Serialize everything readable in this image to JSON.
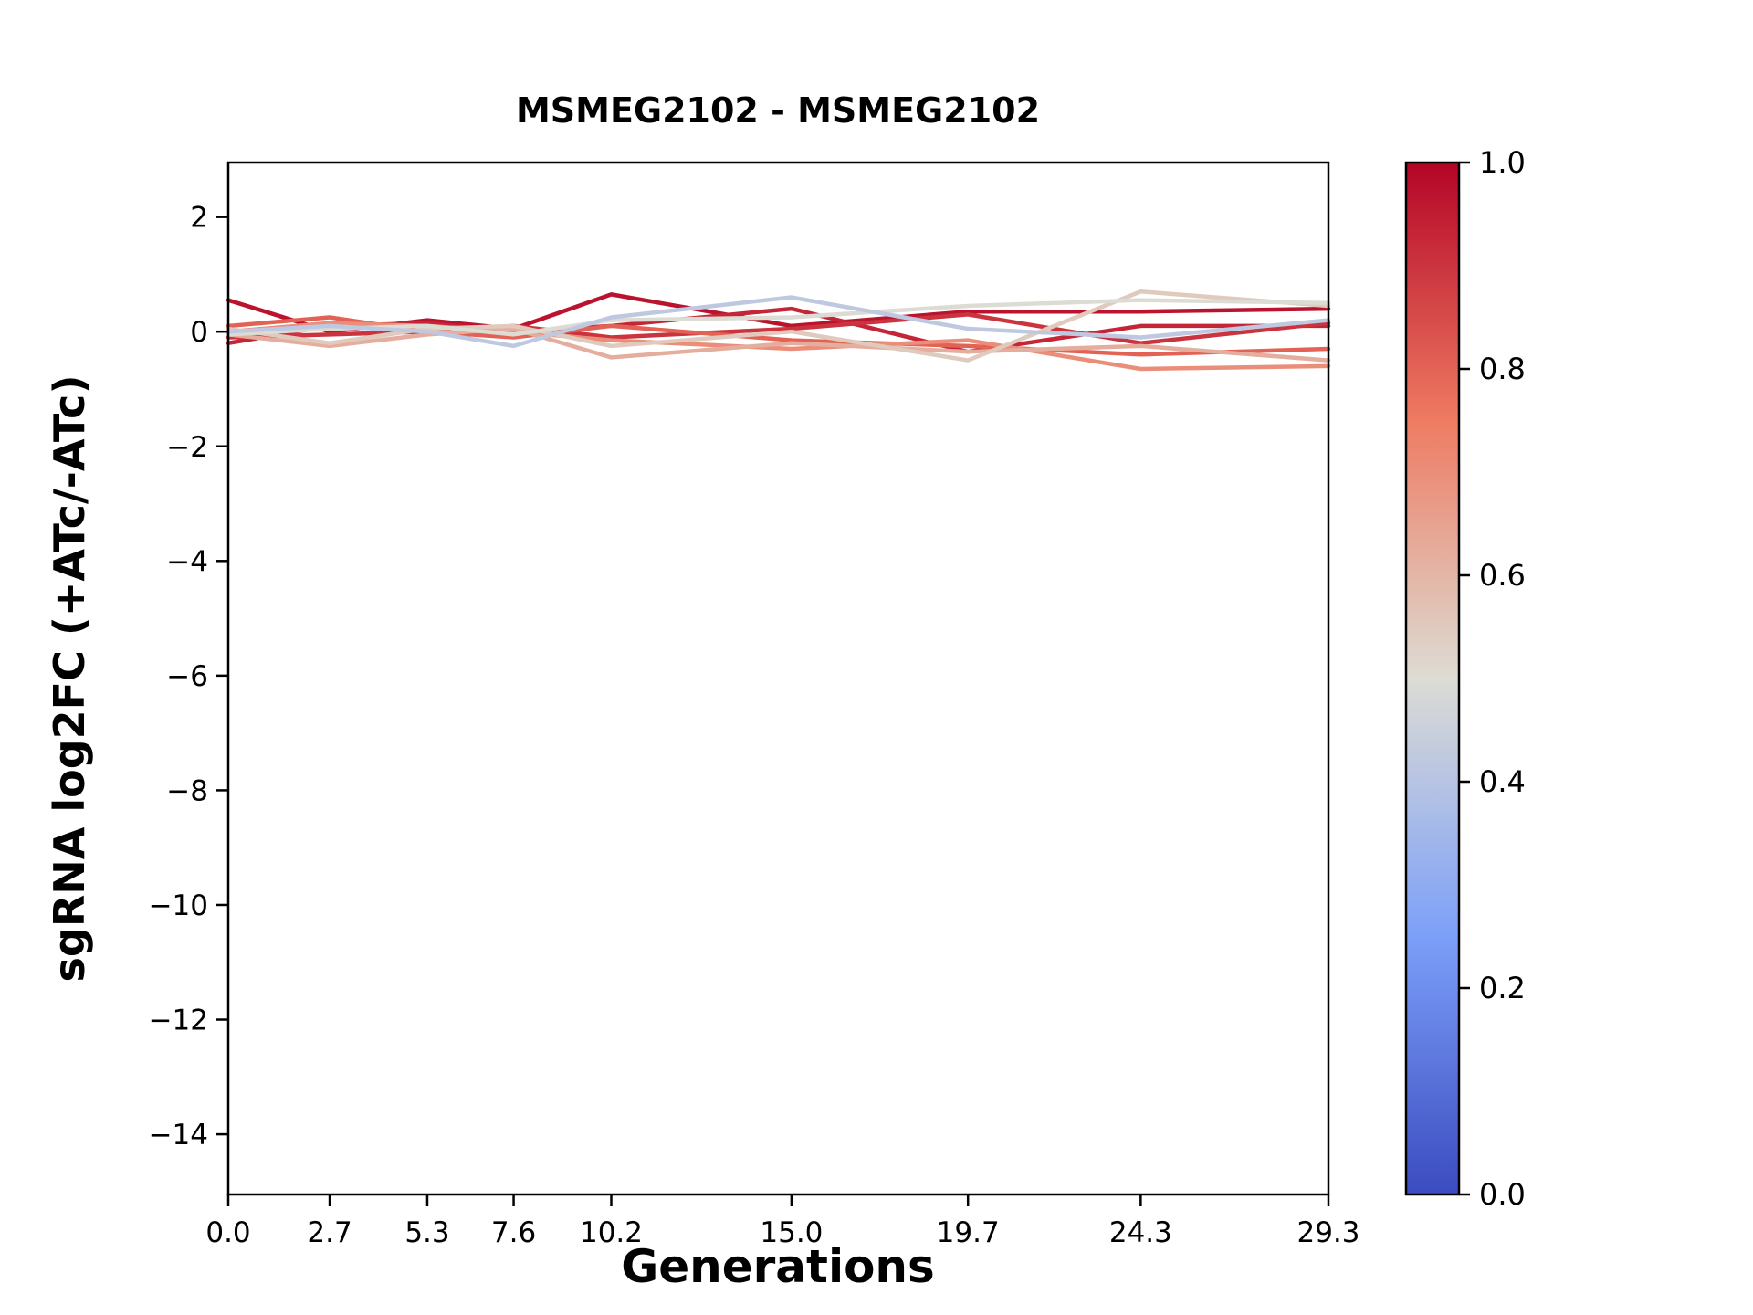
{
  "title": "MSMEG2102 - MSMEG2102",
  "chart_data": {
    "type": "line",
    "title": "MSMEG2102 - MSMEG2102",
    "xlabel": "Generations",
    "ylabel": "sgRNA log2FC (+ATc/-ATc)",
    "x": [
      0.0,
      2.7,
      5.3,
      7.6,
      10.2,
      15.0,
      19.7,
      24.3,
      29.3
    ],
    "x_tick_labels": [
      "0.0",
      "2.7",
      "5.3",
      "7.6",
      "10.2",
      "15.0",
      "19.7",
      "24.3",
      "29.3"
    ],
    "y_ticks": [
      2,
      0,
      -2,
      -4,
      -6,
      -8,
      -10,
      -12,
      -14
    ],
    "y_tick_labels": [
      "2",
      "0",
      "−2",
      "−4",
      "−6",
      "−8",
      "−10",
      "−12",
      "−14"
    ],
    "xlim": [
      0.0,
      29.3
    ],
    "ylim": [
      -15.05,
      2.95
    ],
    "grid": false,
    "legend": "none",
    "colormap": "coolwarm",
    "series": [
      {
        "color_value": 0.97,
        "values": [
          0.55,
          0.0,
          0.2,
          0.05,
          0.65,
          0.1,
          0.35,
          0.35,
          0.4
        ]
      },
      {
        "color_value": 0.93,
        "values": [
          -0.2,
          0.1,
          0.15,
          0.0,
          0.1,
          0.4,
          -0.35,
          0.1,
          0.1
        ]
      },
      {
        "color_value": 0.9,
        "values": [
          -0.1,
          -0.05,
          0.0,
          0.1,
          -0.1,
          0.05,
          0.3,
          -0.2,
          0.15
        ]
      },
      {
        "color_value": 0.8,
        "values": [
          0.1,
          0.25,
          0.0,
          -0.1,
          0.1,
          -0.15,
          -0.25,
          -0.4,
          -0.3
        ]
      },
      {
        "color_value": 0.7,
        "values": [
          0.0,
          0.15,
          0.1,
          0.0,
          -0.15,
          -0.3,
          -0.15,
          -0.65,
          -0.6
        ]
      },
      {
        "color_value": 0.62,
        "values": [
          -0.05,
          -0.25,
          -0.05,
          0.05,
          -0.45,
          -0.2,
          -0.35,
          -0.25,
          -0.5
        ]
      },
      {
        "color_value": 0.55,
        "values": [
          0.05,
          -0.2,
          0.05,
          0.1,
          -0.25,
          0.0,
          -0.5,
          0.7,
          0.45
        ]
      },
      {
        "color_value": 0.5,
        "values": [
          -0.05,
          0.05,
          0.1,
          -0.05,
          0.2,
          0.25,
          0.45,
          0.55,
          0.5
        ]
      },
      {
        "color_value": 0.42,
        "values": [
          0.0,
          0.1,
          0.0,
          -0.25,
          0.25,
          0.6,
          0.05,
          -0.1,
          0.2
        ]
      }
    ],
    "colorbar": {
      "min": 0.0,
      "max": 1.0,
      "tick_values": [
        1.0,
        0.8,
        0.6,
        0.4,
        0.2,
        0.0
      ],
      "tick_labels": [
        "1.0",
        "0.8",
        "0.6",
        "0.4",
        "0.2",
        "0.0"
      ]
    }
  }
}
